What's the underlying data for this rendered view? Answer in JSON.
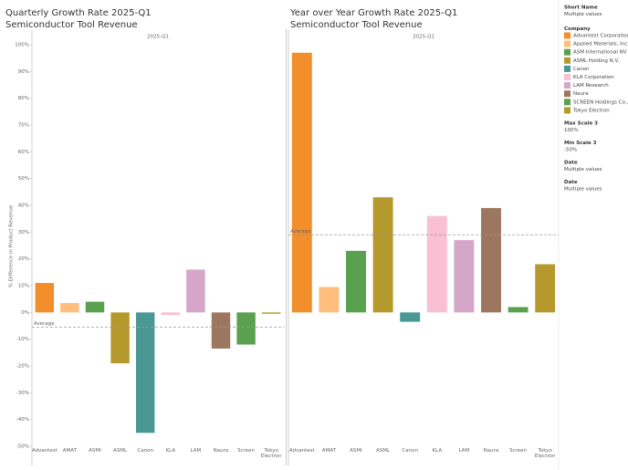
{
  "chart_data": [
    {
      "type": "bar",
      "title": "Quarterly Growth Rate 2025-Q1",
      "subtitle": "Semiconductor Tool Revenue",
      "header": "2025-Q1",
      "y_label": "% Difference in Product Revenue",
      "categories": [
        "Advantest",
        "AMAT",
        "ASMI",
        "ASML",
        "Canon",
        "KLA",
        "LAM",
        "Naura",
        "Screen",
        "Tokyo Electron"
      ],
      "values": [
        11,
        3.5,
        4,
        -19,
        -45,
        -1,
        16,
        -13.5,
        -12,
        -0.5
      ],
      "colors": [
        "#f28e2b",
        "#ffbe7d",
        "#59a14f",
        "#b6992d",
        "#499894",
        "#fabfd2",
        "#d4a6c8",
        "#9d7660",
        "#59a14f",
        "#b6992d"
      ],
      "average": 5.5,
      "average_sign": -1,
      "average_label": "Average",
      "ylim": [
        -50,
        100
      ],
      "yticks": [
        {
          "value": 100,
          "label": "100%"
        },
        {
          "value": 90,
          "label": "90%"
        },
        {
          "value": 80,
          "label": "80%"
        },
        {
          "value": 70,
          "label": "70%"
        },
        {
          "value": 60,
          "label": "60%"
        },
        {
          "value": 50,
          "label": "50%"
        },
        {
          "value": 40,
          "label": "40%"
        },
        {
          "value": 30,
          "label": "30%"
        },
        {
          "value": 20,
          "label": "20%"
        },
        {
          "value": 10,
          "label": "10%"
        },
        {
          "value": 0,
          "label": "0%"
        },
        {
          "value": -10,
          "label": "-10%"
        },
        {
          "value": -20,
          "label": "-20%"
        },
        {
          "value": -30,
          "label": "-30%"
        },
        {
          "value": -40,
          "label": "-40%"
        },
        {
          "value": -50,
          "label": "-50%"
        }
      ]
    },
    {
      "type": "bar",
      "title": "Year over Year Growth Rate 2025-Q1",
      "subtitle": "Semiconductor Tool Revenue",
      "header": "2025-Q1",
      "categories": [
        "Advantest",
        "AMAT",
        "ASMI",
        "ASML",
        "Canon",
        "KLA",
        "LAM",
        "Naura",
        "Screen",
        "Tokyo Electron"
      ],
      "values": [
        97,
        9.5,
        23,
        43,
        -3.5,
        36,
        27,
        39,
        2,
        18
      ],
      "colors": [
        "#f28e2b",
        "#ffbe7d",
        "#59a14f",
        "#b6992d",
        "#499894",
        "#fabfd2",
        "#d4a6c8",
        "#9d7660",
        "#59a14f",
        "#b6992d"
      ],
      "average": 29,
      "average_sign": 1,
      "average_label": "Average",
      "ylim": [
        -50,
        100
      ]
    }
  ],
  "panel": {
    "short_name": {
      "title": "Short Name",
      "value": "Multiple values"
    },
    "legend": {
      "title": "Company",
      "items": [
        {
          "name": "Advantest Corporation",
          "color": "#f28e2b"
        },
        {
          "name": "Applied Materials, Inc.",
          "color": "#ffbe7d"
        },
        {
          "name": "ASM International NV",
          "color": "#59a14f"
        },
        {
          "name": "ASML Holding N.V.",
          "color": "#b6992d"
        },
        {
          "name": "Canon",
          "color": "#499894"
        },
        {
          "name": "KLA Corporation",
          "color": "#fabfd2"
        },
        {
          "name": "LAM Research",
          "color": "#d4a6c8"
        },
        {
          "name": "Naura",
          "color": "#9d7660"
        },
        {
          "name": "SCREEN Holdings Co.,...",
          "color": "#59a14f"
        },
        {
          "name": "Tokyo Electron",
          "color": "#b6992d"
        }
      ]
    },
    "filters": [
      {
        "title": "Max Scale 3",
        "value": "100%"
      },
      {
        "title": "Min Scale 3",
        "value": "-50%"
      },
      {
        "title": "Date",
        "value": "Multiple values"
      },
      {
        "title": "Date",
        "value": "Multiple values"
      }
    ]
  }
}
